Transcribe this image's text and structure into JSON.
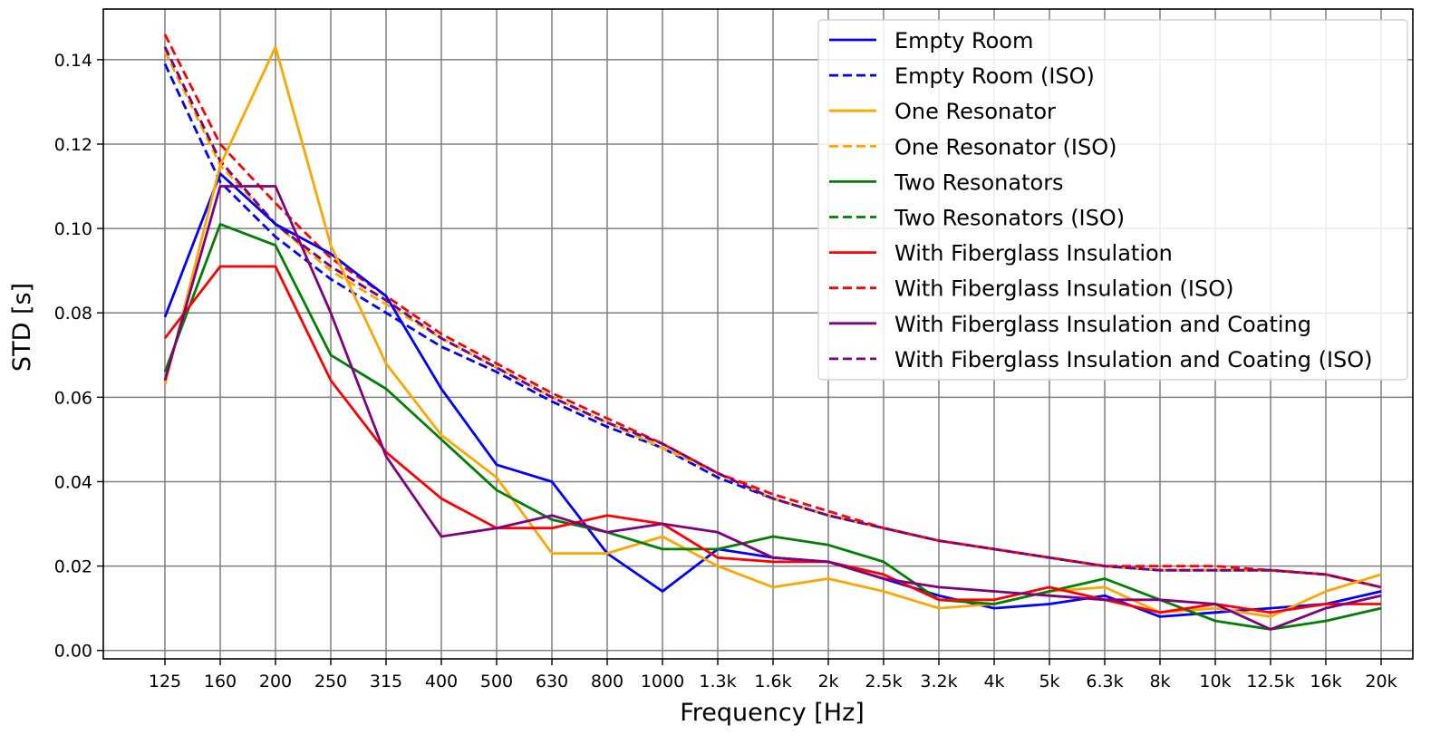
{
  "chart_data": {
    "type": "line",
    "title": "",
    "xlabel": "Frequency [Hz]",
    "ylabel": "STD [s]",
    "grid": true,
    "legend_position": "top-right",
    "ylim": [
      -0.002,
      0.152
    ],
    "yticks": [
      0.0,
      0.02,
      0.04,
      0.06,
      0.08,
      0.1,
      0.12,
      0.14
    ],
    "ytick_labels": [
      "0.00",
      "0.02",
      "0.04",
      "0.06",
      "0.08",
      "0.10",
      "0.12",
      "0.14"
    ],
    "categories": [
      "125",
      "160",
      "200",
      "250",
      "315",
      "400",
      "500",
      "630",
      "800",
      "1000",
      "1.3k",
      "1.6k",
      "2k",
      "2.5k",
      "3.2k",
      "4k",
      "5k",
      "6.3k",
      "8k",
      "10k",
      "12.5k",
      "16k",
      "20k"
    ],
    "series": [
      {
        "name": "Empty Room",
        "color": "#0000ff",
        "dash": "solid",
        "values": [
          0.079,
          0.113,
          0.101,
          0.094,
          0.084,
          0.062,
          0.044,
          0.04,
          0.023,
          0.014,
          0.024,
          0.022,
          0.021,
          0.017,
          0.013,
          0.01,
          0.011,
          0.013,
          0.008,
          0.009,
          0.01,
          0.011,
          0.014
        ]
      },
      {
        "name": "Empty Room (ISO)",
        "color": "#0000ff",
        "dash": "dashed",
        "values": [
          0.139,
          0.111,
          0.098,
          0.088,
          0.08,
          0.072,
          0.066,
          0.059,
          0.053,
          0.048,
          0.041,
          0.036,
          0.032,
          0.029,
          0.026,
          0.024,
          0.022,
          0.02,
          0.019,
          0.019,
          0.019,
          0.018,
          0.015
        ]
      },
      {
        "name": "One Resonator",
        "color": "#ffa500",
        "dash": "solid",
        "values": [
          0.063,
          0.115,
          0.143,
          0.096,
          0.068,
          0.051,
          0.041,
          0.023,
          0.023,
          0.027,
          0.02,
          0.015,
          0.017,
          0.014,
          0.01,
          0.011,
          0.014,
          0.015,
          0.009,
          0.01,
          0.008,
          0.014,
          0.018
        ]
      },
      {
        "name": "One Resonator (ISO)",
        "color": "#ffa500",
        "dash": "dashed",
        "values": [
          0.142,
          0.115,
          0.101,
          0.09,
          0.082,
          0.074,
          0.067,
          0.06,
          0.054,
          0.048,
          0.042,
          0.036,
          0.032,
          0.029,
          0.026,
          0.024,
          0.022,
          0.02,
          0.019,
          0.019,
          0.019,
          0.018,
          0.015
        ]
      },
      {
        "name": "Two Resonators",
        "color": "#008000",
        "dash": "solid",
        "values": [
          0.066,
          0.101,
          0.096,
          0.07,
          0.062,
          0.05,
          0.038,
          0.031,
          0.028,
          0.024,
          0.024,
          0.027,
          0.025,
          0.021,
          0.012,
          0.011,
          0.014,
          0.017,
          0.012,
          0.007,
          0.005,
          0.007,
          0.01
        ]
      },
      {
        "name": "Two Resonators (ISO)",
        "color": "#008000",
        "dash": "dashed",
        "values": [
          0.143,
          0.116,
          0.101,
          0.091,
          0.083,
          0.074,
          0.067,
          0.06,
          0.054,
          0.049,
          0.042,
          0.036,
          0.032,
          0.029,
          0.026,
          0.024,
          0.022,
          0.02,
          0.019,
          0.019,
          0.019,
          0.018,
          0.015
        ]
      },
      {
        "name": "With Fiberglass Insulation",
        "color": "#ff0000",
        "dash": "solid",
        "values": [
          0.074,
          0.091,
          0.091,
          0.064,
          0.047,
          0.036,
          0.029,
          0.029,
          0.032,
          0.03,
          0.022,
          0.021,
          0.021,
          0.018,
          0.012,
          0.012,
          0.015,
          0.012,
          0.009,
          0.011,
          0.009,
          0.011,
          0.011
        ]
      },
      {
        "name": "With Fiberglass Insulation (ISO)",
        "color": "#ff0000",
        "dash": "dashed",
        "values": [
          0.146,
          0.12,
          0.106,
          0.093,
          0.084,
          0.075,
          0.068,
          0.061,
          0.055,
          0.049,
          0.042,
          0.037,
          0.033,
          0.029,
          0.026,
          0.024,
          0.022,
          0.02,
          0.02,
          0.02,
          0.019,
          0.018,
          0.015
        ]
      },
      {
        "name": "With Fiberglass Insulation and Coating",
        "color": "#800080",
        "dash": "solid",
        "values": [
          0.064,
          0.11,
          0.11,
          0.08,
          0.046,
          0.027,
          0.029,
          0.032,
          0.028,
          0.03,
          0.028,
          0.022,
          0.021,
          0.017,
          0.015,
          0.014,
          0.013,
          0.012,
          0.012,
          0.011,
          0.005,
          0.01,
          0.013
        ]
      },
      {
        "name": "With Fiberglass Insulation and Coating (ISO)",
        "color": "#800080",
        "dash": "dashed",
        "values": [
          0.143,
          0.116,
          0.101,
          0.091,
          0.083,
          0.074,
          0.067,
          0.06,
          0.054,
          0.049,
          0.042,
          0.036,
          0.032,
          0.029,
          0.026,
          0.024,
          0.022,
          0.02,
          0.019,
          0.019,
          0.019,
          0.018,
          0.015
        ]
      }
    ]
  }
}
